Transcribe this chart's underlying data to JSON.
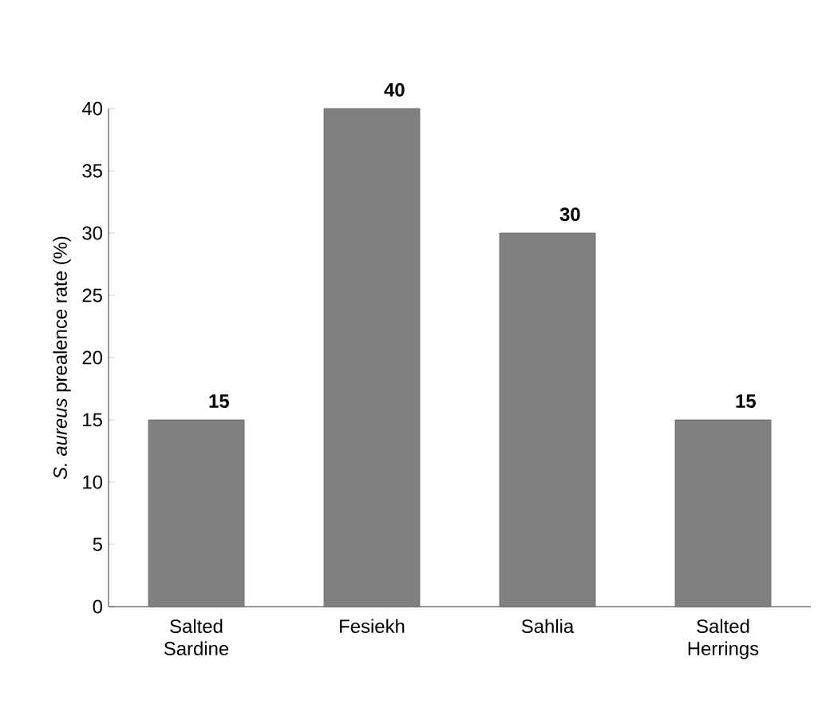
{
  "chart_data": {
    "type": "bar",
    "ylabel": "*S. aureus* prealence rate (%)",
    "categories": [
      "Salted Sardine",
      "Fesiekh",
      "Sahlia",
      "Salted Herrings"
    ],
    "values": [
      15,
      40,
      30,
      15
    ],
    "color": "#808080",
    "ylim": [
      0,
      40
    ],
    "yticks": [
      0,
      5,
      10,
      15,
      20,
      25,
      30,
      35,
      40
    ],
    "data_labels": true
  }
}
